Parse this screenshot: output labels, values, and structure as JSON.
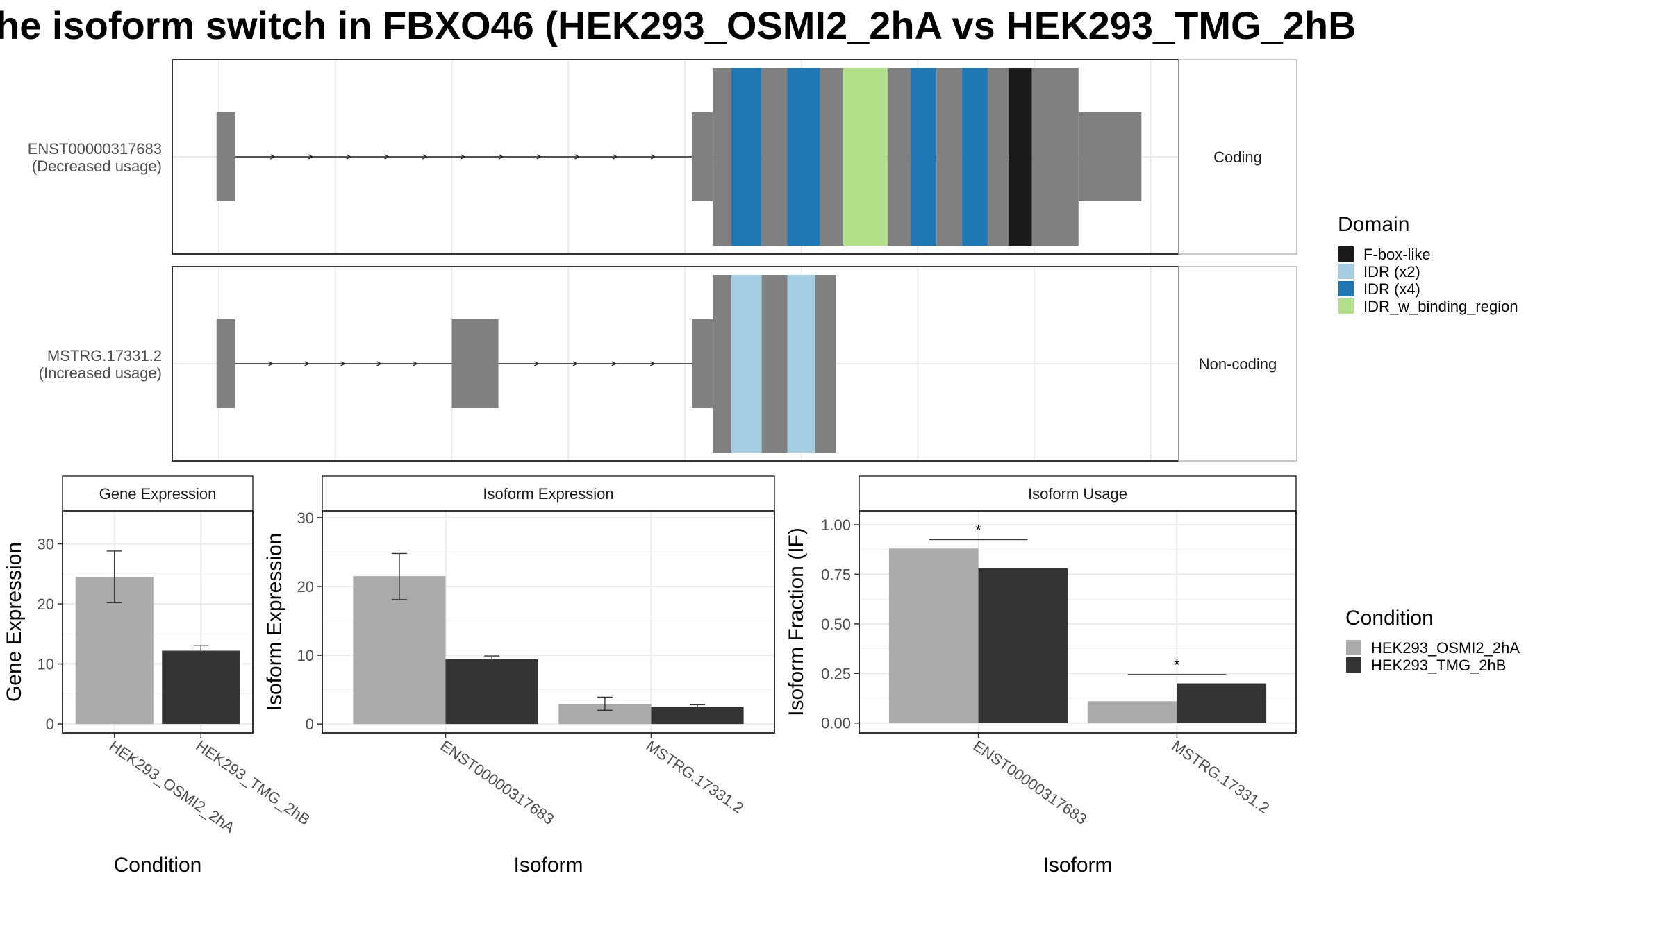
{
  "title": "he isoform switch in FBXO46 (HEK293_OSMI2_2hA vs HEK293_TMG_2hB",
  "colors": {
    "exon": "#808080",
    "cond_a": "#aaaaaa",
    "cond_b": "#333333",
    "grid": "#ebebeb",
    "strip_bg": "#ffffff",
    "panel_border": "#333333"
  },
  "chart_data": [
    {
      "type": "gene-structure",
      "x_axis": "genomic coordinate (no tick labels shown)",
      "transcripts": [
        {
          "id": "ENST00000317683",
          "label_line1": "ENST00000317683",
          "label_line2": "(Decreased usage)",
          "strip": "Coding",
          "utr_exons": [
            [
              0.9,
              1.7
            ],
            [
              21.3,
              22.2
            ],
            [
              37.9,
              40.6
            ]
          ],
          "cds_segments": [
            [
              22.2,
              23.0,
              "gray"
            ],
            [
              23.0,
              24.3,
              "IDR (x4)"
            ],
            [
              24.3,
              25.4,
              "gray"
            ],
            [
              25.4,
              26.8,
              "IDR (x4)"
            ],
            [
              26.8,
              27.8,
              "gray"
            ],
            [
              27.8,
              29.7,
              "IDR_w_binding_region"
            ],
            [
              29.7,
              30.7,
              "gray"
            ],
            [
              30.7,
              31.8,
              "IDR (x4)"
            ],
            [
              31.8,
              32.9,
              "gray"
            ],
            [
              32.9,
              34.0,
              "IDR (x4)"
            ],
            [
              34.0,
              34.9,
              "gray"
            ],
            [
              34.9,
              35.9,
              "F-box-like"
            ],
            [
              35.9,
              37.9,
              "gray"
            ]
          ]
        },
        {
          "id": "MSTRG.17331.2",
          "label_line1": "MSTRG.17331.2",
          "label_line2": "(Increased usage)",
          "strip": "Non-coding",
          "utr_exons": [
            [
              0.9,
              1.7
            ],
            [
              11.0,
              13.0
            ],
            [
              21.3,
              22.2
            ]
          ],
          "cds_segments": [
            [
              22.2,
              23.0,
              "gray"
            ],
            [
              23.0,
              24.3,
              "IDR (x2)"
            ],
            [
              24.3,
              25.4,
              "gray"
            ],
            [
              25.4,
              26.6,
              "IDR (x2)"
            ],
            [
              26.6,
              27.5,
              "gray"
            ]
          ]
        }
      ],
      "legend_title": "Domain",
      "legend": [
        {
          "label": "F-box-like",
          "color": "#1a1a1a"
        },
        {
          "label": "IDR (x2)",
          "color": "#a6cee3"
        },
        {
          "label": "IDR (x4)",
          "color": "#1f78b4"
        },
        {
          "label": "IDR_w_binding_region",
          "color": "#b2df8a"
        }
      ]
    },
    {
      "type": "bar",
      "strip": "Gene Expression",
      "xlabel": "Condition",
      "ylabel": "Gene Expression",
      "categories": [
        "HEK293_OSMI2_2hA",
        "HEK293_TMG_2hB"
      ],
      "values": [
        24.5,
        12.2
      ],
      "error_low": [
        20.2,
        11.3
      ],
      "error_high": [
        28.8,
        13.1
      ],
      "ylim": [
        -1.5,
        35.5
      ],
      "yticks": [
        0,
        10,
        20,
        30
      ],
      "ytick_labels": [
        "0",
        "10",
        "20",
        "30"
      ]
    },
    {
      "type": "bar",
      "strip": "Isoform Expression",
      "xlabel": "Isoform",
      "ylabel": "Isoform Expression",
      "categories": [
        "ENST00000317683",
        "MSTRG.17331.2"
      ],
      "series": [
        {
          "name": "HEK293_OSMI2_2hA",
          "values": [
            21.5,
            2.9
          ],
          "error_low": [
            18.1,
            2.0
          ],
          "error_high": [
            24.8,
            3.9
          ]
        },
        {
          "name": "HEK293_TMG_2hB",
          "values": [
            9.4,
            2.5
          ],
          "error_low": [
            9.0,
            2.2
          ],
          "error_high": [
            9.9,
            2.8
          ]
        }
      ],
      "ylim": [
        -1.3,
        31.0
      ],
      "yticks": [
        0,
        10,
        20,
        30
      ],
      "ytick_labels": [
        "0",
        "10",
        "20",
        "30"
      ]
    },
    {
      "type": "bar",
      "strip": "Isoform Usage",
      "xlabel": "Isoform",
      "ylabel": "Isoform Fraction (IF)",
      "categories": [
        "ENST00000317683",
        "MSTRG.17331.2"
      ],
      "series": [
        {
          "name": "HEK293_OSMI2_2hA",
          "values": [
            0.88,
            0.11
          ]
        },
        {
          "name": "HEK293_TMG_2hB",
          "values": [
            0.78,
            0.2
          ]
        }
      ],
      "significance": [
        {
          "label": "*",
          "y": 0.925
        },
        {
          "label": "*",
          "y": 0.245
        }
      ],
      "ylim": [
        -0.05,
        1.07
      ],
      "yticks": [
        0,
        0.25,
        0.5,
        0.75,
        1.0
      ],
      "ytick_labels": [
        "0.00",
        "0.25",
        "0.50",
        "0.75",
        "1.00"
      ]
    }
  ],
  "condition_legend": {
    "title": "Condition",
    "items": [
      {
        "label": "HEK293_OSMI2_2hA",
        "color": "#aaaaaa"
      },
      {
        "label": "HEK293_TMG_2hB",
        "color": "#333333"
      }
    ]
  }
}
